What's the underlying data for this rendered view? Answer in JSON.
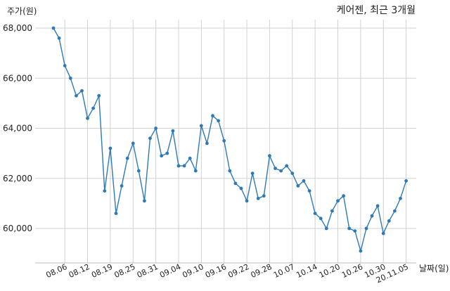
{
  "chart_data": {
    "type": "line",
    "title": "케어젠, 최근 3개월",
    "ylabel": "주가(원)",
    "xlabel": "날짜(일)",
    "ylim": [
      58700,
      68500
    ],
    "yticks": [
      60000,
      62000,
      64000,
      66000,
      68000
    ],
    "ytick_labels": [
      "60,000",
      "62,000",
      "64,000",
      "66,000",
      "68,000"
    ],
    "grid": true,
    "color": "#2e7ab8",
    "xtick_labels": [
      "08.06",
      "08.12",
      "08.19",
      "08.25",
      "08.31",
      "09.04",
      "09.10",
      "09.16",
      "09.22",
      "09.28",
      "10.07",
      "10.14",
      "10.20",
      "10.26",
      "10.30",
      "20.11.05"
    ],
    "xtick_index": [
      2,
      6,
      10,
      14,
      18,
      22,
      26,
      30,
      34,
      38,
      42,
      46,
      50,
      54,
      58,
      62
    ],
    "values": [
      68000,
      67600,
      66500,
      66000,
      65300,
      65500,
      64400,
      64800,
      65300,
      61500,
      63200,
      60600,
      61700,
      62800,
      63400,
      62300,
      61100,
      63600,
      64000,
      62900,
      63000,
      63900,
      62500,
      62500,
      62800,
      62300,
      64100,
      63400,
      64500,
      64300,
      63500,
      62300,
      61800,
      61600,
      61100,
      62200,
      61200,
      61300,
      62900,
      62400,
      62300,
      62500,
      62200,
      61700,
      61900,
      61500,
      60600,
      60400,
      60000,
      60700,
      61100,
      61300,
      60000,
      59900,
      59100,
      60000,
      60500,
      60900,
      59800,
      60300,
      60700,
      61200,
      61900
    ]
  }
}
